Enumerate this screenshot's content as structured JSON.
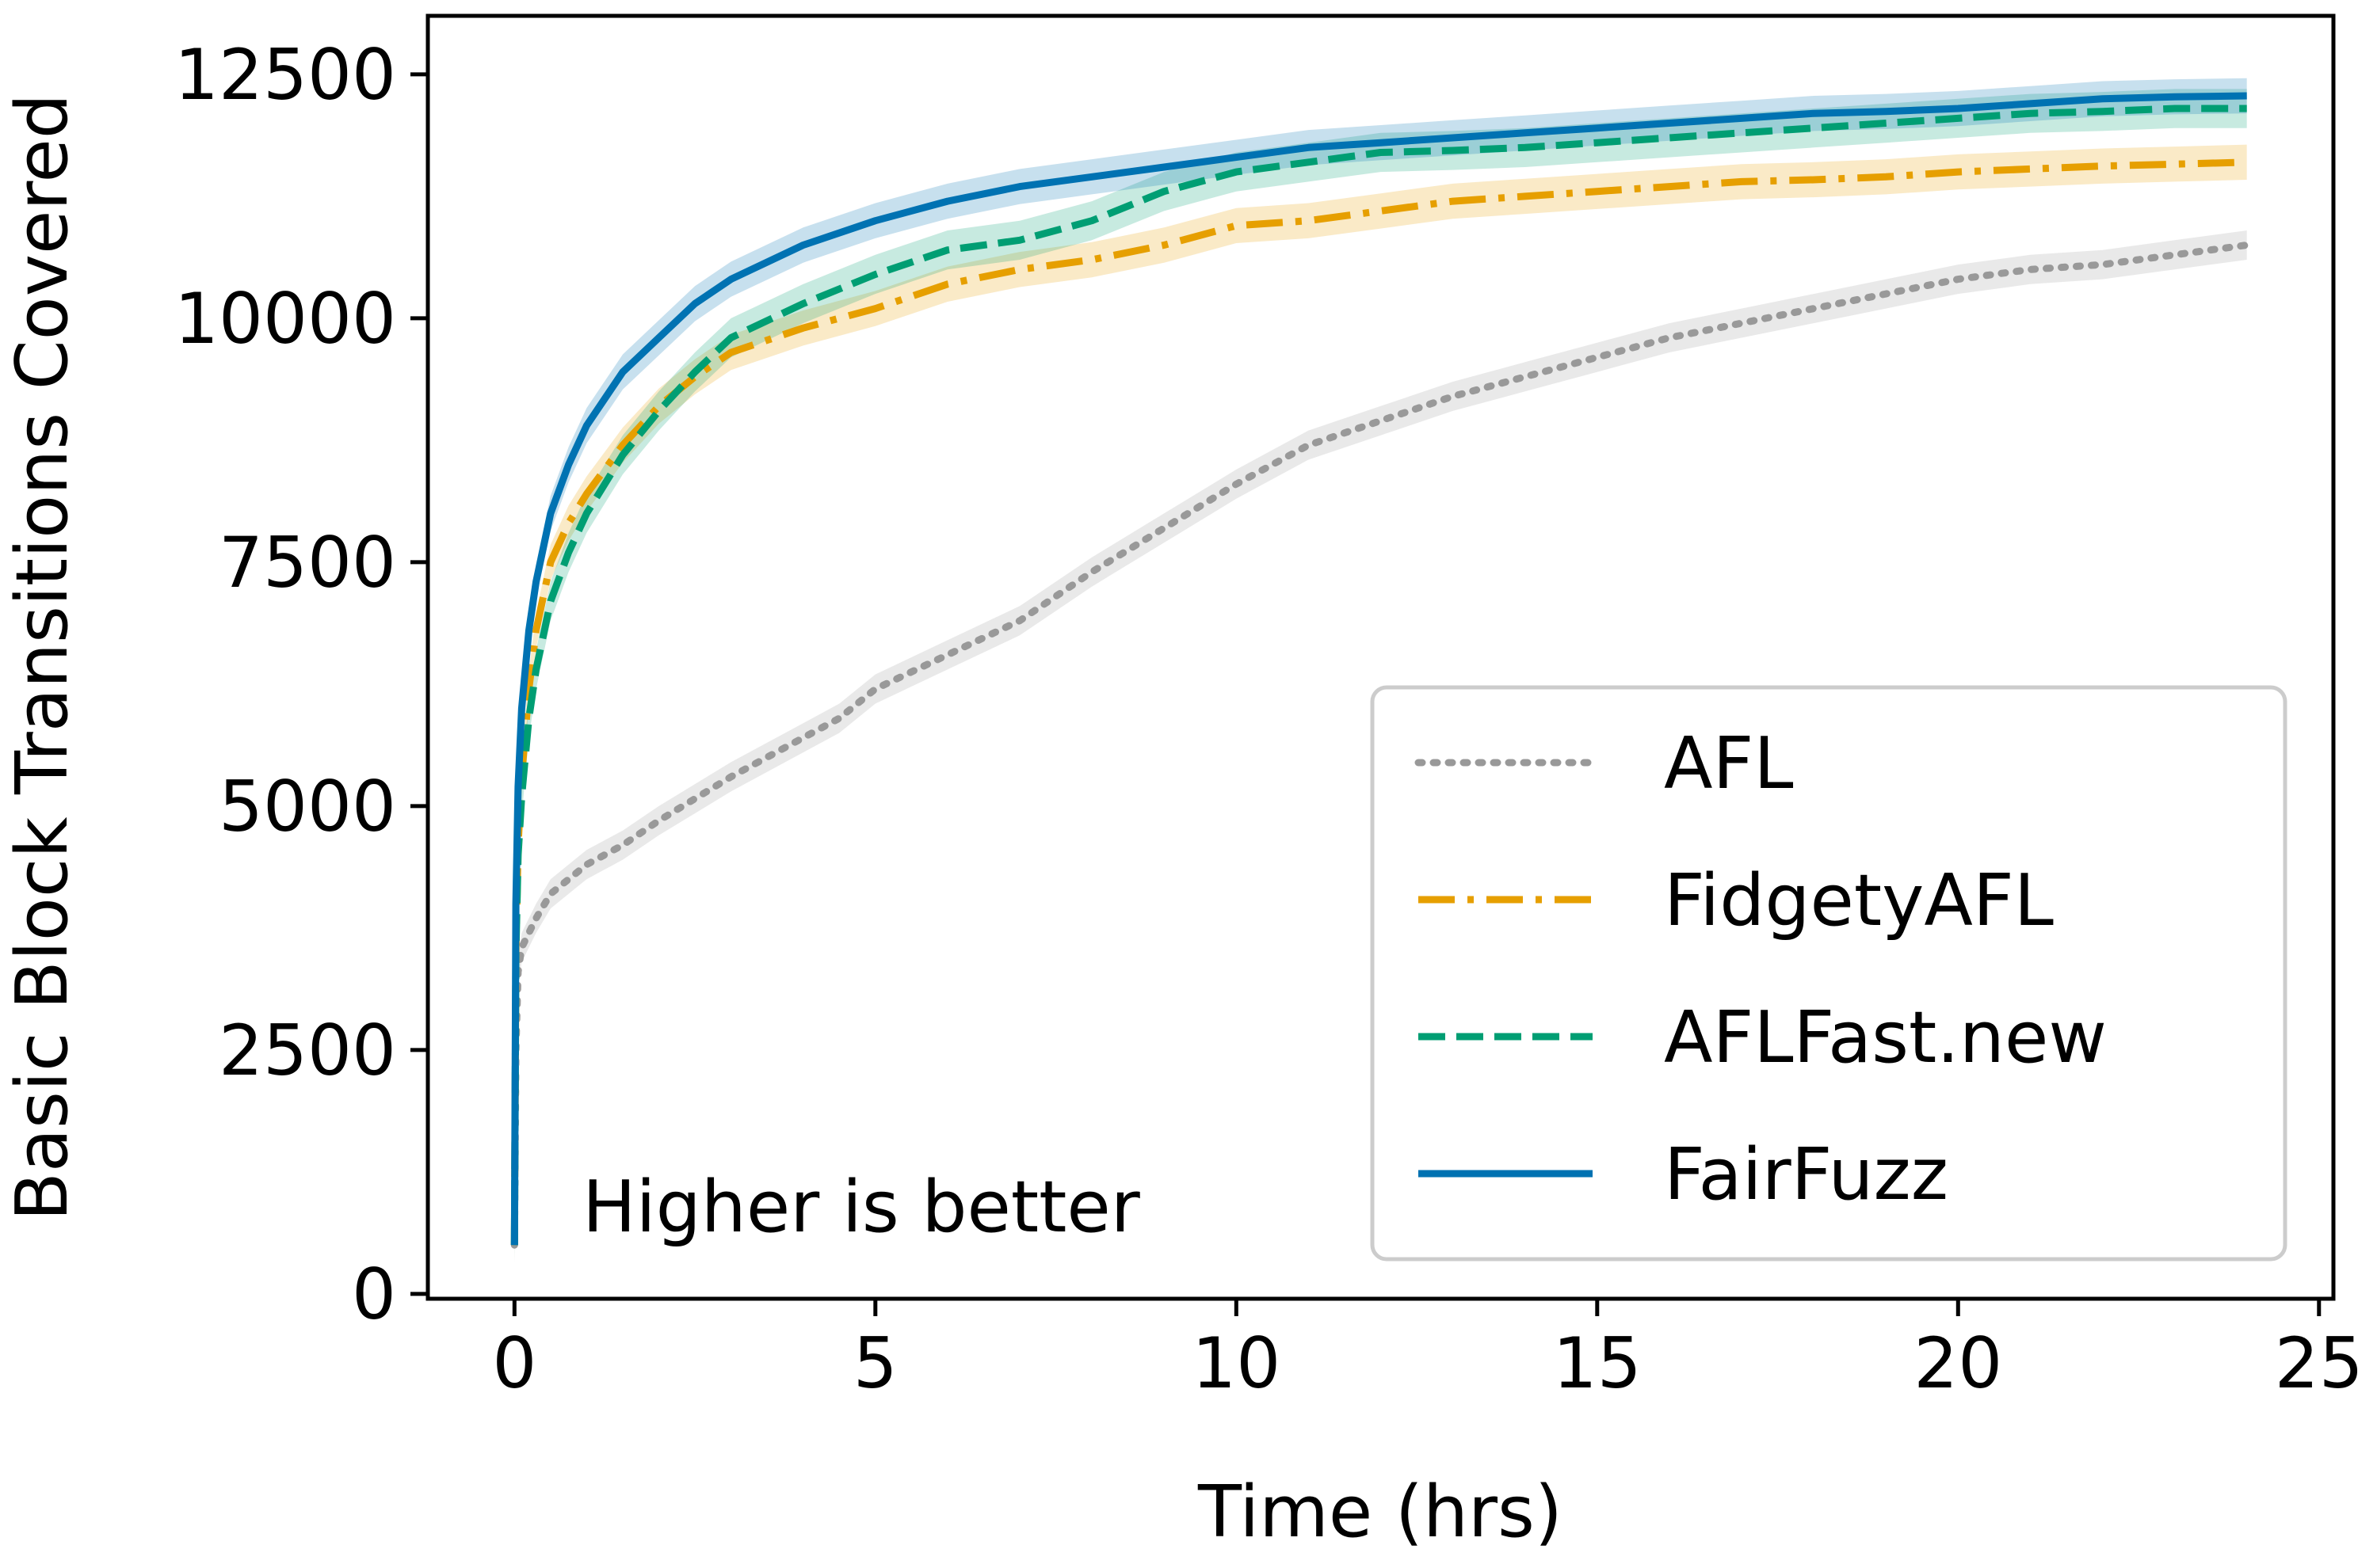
{
  "chart_data": {
    "type": "line",
    "title": "",
    "xlabel": "Time (hrs)",
    "ylabel": "Basic Block Transitions Covered",
    "xlim": [
      -1.2,
      25.2
    ],
    "ylim": [
      -50,
      13100
    ],
    "xticks": [
      0,
      5,
      10,
      15,
      20,
      25
    ],
    "yticks": [
      0,
      2500,
      5000,
      7500,
      10000,
      12500
    ],
    "xtick_labels": [
      "0",
      "5",
      "10",
      "15",
      "20",
      "25"
    ],
    "ytick_labels": [
      "0",
      "2500",
      "5000",
      "7500",
      "10000",
      "12500"
    ],
    "grid": false,
    "legend_position": "lower-right",
    "annotation": "Higher is better",
    "series": [
      {
        "name": "AFL",
        "color": "#999999",
        "style": "dotted",
        "band": 150,
        "x": [
          0,
          0.02,
          0.05,
          0.1,
          0.2,
          0.3,
          0.5,
          0.75,
          1,
          1.5,
          2,
          3,
          4,
          4.5,
          5,
          6,
          7,
          8,
          9,
          10,
          11,
          12,
          13,
          14,
          15,
          16,
          17,
          18,
          19,
          20,
          21,
          22,
          23,
          24
        ],
        "values": [
          500,
          2500,
          3300,
          3550,
          3700,
          3850,
          4100,
          4250,
          4400,
          4600,
          4850,
          5300,
          5700,
          5900,
          6200,
          6550,
          6900,
          7400,
          7850,
          8300,
          8700,
          8950,
          9200,
          9400,
          9600,
          9800,
          9950,
          10100,
          10250,
          10400,
          10500,
          10550,
          10650,
          10750
        ]
      },
      {
        "name": "FidgetyAFL",
        "color": "#E69F00",
        "style": "dashdot",
        "band": 180,
        "x": [
          0,
          0.02,
          0.05,
          0.1,
          0.2,
          0.3,
          0.5,
          0.75,
          1,
          1.5,
          2,
          2.5,
          3,
          4,
          5,
          6,
          7,
          8,
          9,
          10,
          11,
          12,
          13,
          14,
          15,
          16,
          17,
          18,
          19,
          20,
          21,
          22,
          23,
          24
        ],
        "values": [
          500,
          3500,
          4600,
          5300,
          6200,
          6800,
          7500,
          7900,
          8200,
          8700,
          9100,
          9400,
          9650,
          9900,
          10100,
          10350,
          10500,
          10600,
          10750,
          10950,
          11000,
          11100,
          11200,
          11250,
          11300,
          11350,
          11400,
          11420,
          11450,
          11500,
          11530,
          11560,
          11580,
          11600
        ]
      },
      {
        "name": "AFLFast.new",
        "color": "#009E73",
        "style": "dashed",
        "band": 200,
        "x": [
          0,
          0.02,
          0.05,
          0.1,
          0.2,
          0.3,
          0.5,
          0.75,
          1,
          1.5,
          2,
          2.5,
          3,
          4,
          5,
          6,
          7,
          8,
          9,
          10,
          11,
          12,
          13,
          14,
          15,
          16,
          17,
          18,
          19,
          20,
          21,
          22,
          23,
          24
        ],
        "values": [
          500,
          3500,
          4500,
          5100,
          5900,
          6400,
          7100,
          7600,
          8000,
          8600,
          9050,
          9450,
          9800,
          10150,
          10450,
          10700,
          10800,
          11000,
          11300,
          11500,
          11600,
          11700,
          11720,
          11750,
          11800,
          11850,
          11900,
          11950,
          12000,
          12050,
          12100,
          12120,
          12150,
          12150
        ]
      },
      {
        "name": "FairFuzz",
        "color": "#0072B2",
        "style": "solid",
        "band": 180,
        "x": [
          0,
          0.02,
          0.05,
          0.1,
          0.2,
          0.3,
          0.5,
          0.75,
          1,
          1.5,
          2,
          2.5,
          3,
          4,
          5,
          6,
          7,
          8,
          9,
          10,
          11,
          12,
          13,
          14,
          15,
          16,
          17,
          18,
          19,
          20,
          21,
          22,
          23,
          24
        ],
        "values": [
          500,
          4000,
          5200,
          6000,
          6800,
          7300,
          8000,
          8500,
          8900,
          9450,
          9800,
          10150,
          10400,
          10750,
          11000,
          11200,
          11350,
          11450,
          11550,
          11650,
          11750,
          11800,
          11850,
          11900,
          11950,
          12000,
          12050,
          12100,
          12120,
          12150,
          12200,
          12250,
          12270,
          12280
        ]
      }
    ]
  }
}
